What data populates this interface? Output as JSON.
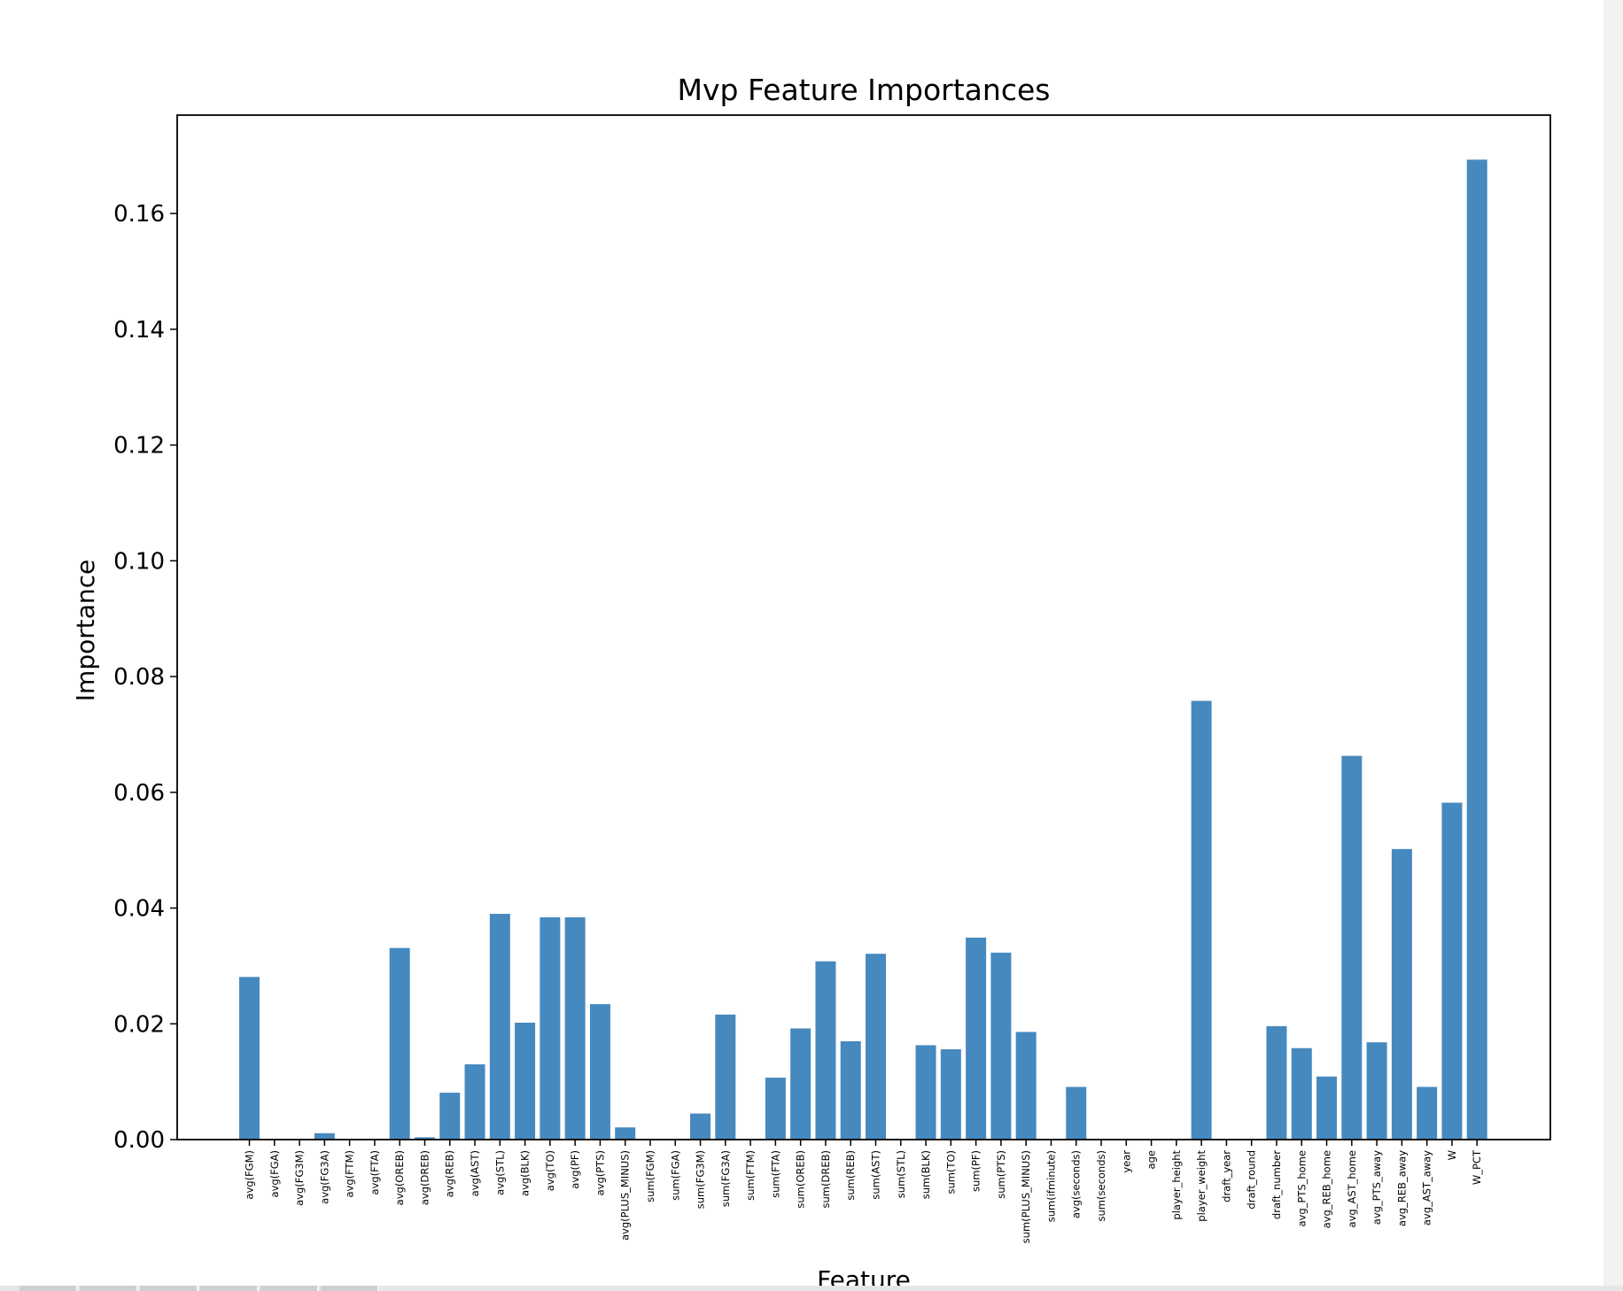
{
  "chart_data": {
    "type": "bar",
    "title": "Mvp Feature Importances",
    "xlabel": "Feature",
    "ylabel": "Importance",
    "ylim": [
      0,
      0.177
    ],
    "yticks": [
      0.0,
      0.02,
      0.04,
      0.06,
      0.08,
      0.1,
      0.12,
      0.14,
      0.16
    ],
    "bar_color": "#4689bf",
    "grid": false,
    "categories": [
      "avg(FGM)",
      "avg(FGA)",
      "avg(FG3M)",
      "avg(FG3A)",
      "avg(FTM)",
      "avg(FTA)",
      "avg(OREB)",
      "avg(DREB)",
      "avg(REB)",
      "avg(AST)",
      "avg(STL)",
      "avg(BLK)",
      "avg(TO)",
      "avg(PF)",
      "avg(PTS)",
      "avg(PLUS_MINUS)",
      "sum(FGM)",
      "sum(FGA)",
      "sum(FG3M)",
      "sum(FG3A)",
      "sum(FTM)",
      "sum(FTA)",
      "sum(OREB)",
      "sum(DREB)",
      "sum(REB)",
      "sum(AST)",
      "sum(STL)",
      "sum(BLK)",
      "sum(TO)",
      "sum(PF)",
      "sum(PTS)",
      "sum(PLUS_MINUS)",
      "sum(ifminute)",
      "avg(seconds)",
      "sum(seconds)",
      "year",
      "age",
      "player_height",
      "player_weight",
      "draft_year",
      "draft_round",
      "draft_number",
      "avg_PTS_home",
      "avg_REB_home",
      "avg_AST_home",
      "avg_PTS_away",
      "avg_REB_away",
      "avg_AST_away",
      "W",
      "W_PCT"
    ],
    "values": [
      0.0281,
      0.0,
      0.0,
      0.0011,
      0.0,
      0.0,
      0.0331,
      0.0004,
      0.0081,
      0.013,
      0.039,
      0.0202,
      0.0384,
      0.0384,
      0.0234,
      0.0021,
      0.0,
      0.0,
      0.0045,
      0.0216,
      0.0,
      0.0107,
      0.0192,
      0.0308,
      0.017,
      0.0321,
      0.0,
      0.0163,
      0.0156,
      0.0349,
      0.0323,
      0.0186,
      0.0,
      0.0091,
      0.0,
      0.0,
      0.0,
      0.0,
      0.0758,
      0.0,
      0.0,
      0.0196,
      0.0158,
      0.0109,
      0.0663,
      0.0168,
      0.0502,
      0.0091,
      0.0582,
      0.1693
    ]
  }
}
